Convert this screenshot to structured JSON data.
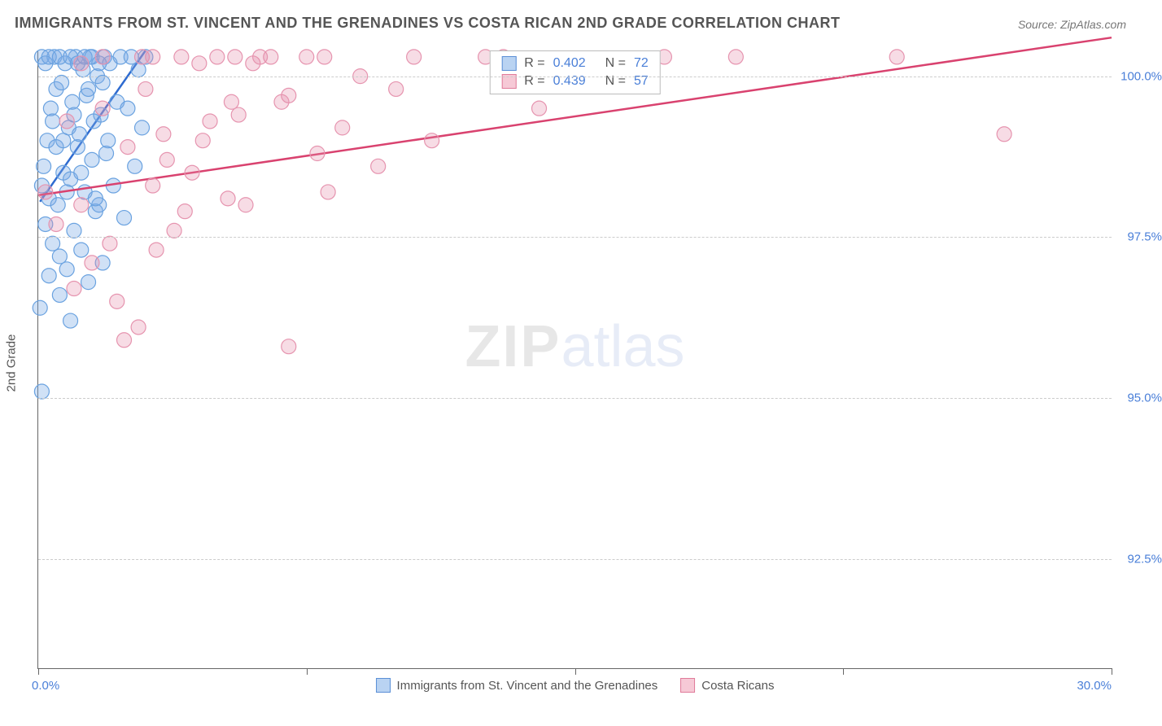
{
  "title": "IMMIGRANTS FROM ST. VINCENT AND THE GRENADINES VS COSTA RICAN 2ND GRADE CORRELATION CHART",
  "source": "Source: ZipAtlas.com",
  "watermark": {
    "part1": "ZIP",
    "part2": "atlas"
  },
  "yaxis": {
    "title": "2nd Grade",
    "min": 90.8,
    "max": 100.4,
    "ticks": [
      92.5,
      95.0,
      97.5,
      100.0
    ],
    "tick_labels": [
      "92.5%",
      "95.0%",
      "97.5%",
      "100.0%"
    ]
  },
  "xaxis": {
    "min": 0.0,
    "max": 30.0,
    "ticks": [
      0,
      7.5,
      15.0,
      22.5,
      30.0
    ],
    "label_left": "0.0%",
    "label_right": "30.0%"
  },
  "grid_color": "#cccccc",
  "series": [
    {
      "key": "svg",
      "name": "Immigrants from St. Vincent and the Grenadines",
      "swatch_fill": "#b9d3f2",
      "swatch_stroke": "#5b8fd6",
      "point_fill": "rgba(120,170,230,0.35)",
      "point_stroke": "#6aa2e0",
      "line_color": "#2e6bd0",
      "r": 0.402,
      "n": 72,
      "marker_r": 9,
      "trend": {
        "x1": 0.05,
        "y1": 98.05,
        "x2": 3.0,
        "y2": 100.4
      },
      "points": [
        [
          0.1,
          98.3
        ],
        [
          0.15,
          98.6
        ],
        [
          0.2,
          97.7
        ],
        [
          0.25,
          99.0
        ],
        [
          0.3,
          98.1
        ],
        [
          0.35,
          99.5
        ],
        [
          0.4,
          97.4
        ],
        [
          0.45,
          100.3
        ],
        [
          0.5,
          99.8
        ],
        [
          0.55,
          98.0
        ],
        [
          0.6,
          97.2
        ],
        [
          0.65,
          99.9
        ],
        [
          0.7,
          98.5
        ],
        [
          0.75,
          100.2
        ],
        [
          0.8,
          97.0
        ],
        [
          0.85,
          99.2
        ],
        [
          0.9,
          98.4
        ],
        [
          0.95,
          99.6
        ],
        [
          1.0,
          97.6
        ],
        [
          1.05,
          100.3
        ],
        [
          1.1,
          98.9
        ],
        [
          1.15,
          99.1
        ],
        [
          1.2,
          97.3
        ],
        [
          1.25,
          100.1
        ],
        [
          1.3,
          98.2
        ],
        [
          1.35,
          99.7
        ],
        [
          1.4,
          96.8
        ],
        [
          1.45,
          100.3
        ],
        [
          1.5,
          98.7
        ],
        [
          1.55,
          99.3
        ],
        [
          1.6,
          97.9
        ],
        [
          1.65,
          100.0
        ],
        [
          1.7,
          98.0
        ],
        [
          1.75,
          99.4
        ],
        [
          1.8,
          97.1
        ],
        [
          1.85,
          100.3
        ],
        [
          1.9,
          98.8
        ],
        [
          1.95,
          99.0
        ],
        [
          2.0,
          100.2
        ],
        [
          2.1,
          98.3
        ],
        [
          2.2,
          99.6
        ],
        [
          2.3,
          100.3
        ],
        [
          2.4,
          97.8
        ],
        [
          2.5,
          99.5
        ],
        [
          2.6,
          100.3
        ],
        [
          2.7,
          98.6
        ],
        [
          2.8,
          100.1
        ],
        [
          2.9,
          99.2
        ],
        [
          3.0,
          100.3
        ],
        [
          0.05,
          96.4
        ],
        [
          0.1,
          95.1
        ],
        [
          0.3,
          96.9
        ],
        [
          0.6,
          96.6
        ],
        [
          0.9,
          96.2
        ],
        [
          0.1,
          100.3
        ],
        [
          0.2,
          100.2
        ],
        [
          0.3,
          100.3
        ],
        [
          0.4,
          99.3
        ],
        [
          0.5,
          98.9
        ],
        [
          0.6,
          100.3
        ],
        [
          0.7,
          99.0
        ],
        [
          0.8,
          98.2
        ],
        [
          0.9,
          100.3
        ],
        [
          1.0,
          99.4
        ],
        [
          1.1,
          100.2
        ],
        [
          1.2,
          98.5
        ],
        [
          1.3,
          100.3
        ],
        [
          1.4,
          99.8
        ],
        [
          1.5,
          100.3
        ],
        [
          1.6,
          98.1
        ],
        [
          1.7,
          100.2
        ],
        [
          1.8,
          99.9
        ]
      ]
    },
    {
      "key": "cr",
      "name": "Costa Ricans",
      "swatch_fill": "#f6c9d6",
      "swatch_stroke": "#e07b9a",
      "point_fill": "rgba(230,140,170,0.30)",
      "point_stroke": "#e694af",
      "line_color": "#d9426f",
      "r": 0.439,
      "n": 57,
      "marker_r": 9,
      "trend": {
        "x1": 0.0,
        "y1": 98.15,
        "x2": 30.0,
        "y2": 100.6
      },
      "points": [
        [
          0.2,
          98.2
        ],
        [
          0.5,
          97.7
        ],
        [
          0.8,
          99.3
        ],
        [
          1.0,
          96.7
        ],
        [
          1.2,
          98.0
        ],
        [
          1.5,
          97.1
        ],
        [
          1.8,
          99.5
        ],
        [
          2.0,
          97.4
        ],
        [
          2.2,
          96.5
        ],
        [
          2.5,
          98.9
        ],
        [
          2.8,
          96.1
        ],
        [
          3.0,
          99.8
        ],
        [
          3.2,
          98.3
        ],
        [
          3.5,
          99.1
        ],
        [
          3.8,
          97.6
        ],
        [
          4.0,
          100.3
        ],
        [
          4.3,
          98.5
        ],
        [
          4.6,
          99.0
        ],
        [
          5.0,
          100.3
        ],
        [
          5.3,
          98.1
        ],
        [
          5.6,
          99.4
        ],
        [
          6.0,
          100.2
        ],
        [
          6.5,
          100.3
        ],
        [
          7.0,
          99.7
        ],
        [
          7.5,
          100.3
        ],
        [
          7.8,
          98.8
        ],
        [
          8.0,
          100.3
        ],
        [
          8.5,
          99.2
        ],
        [
          9.0,
          100.0
        ],
        [
          9.5,
          98.6
        ],
        [
          5.4,
          99.6
        ],
        [
          5.8,
          98.0
        ],
        [
          6.2,
          100.3
        ],
        [
          4.1,
          97.9
        ],
        [
          2.9,
          100.3
        ],
        [
          3.3,
          97.3
        ],
        [
          10.0,
          99.8
        ],
        [
          10.5,
          100.3
        ],
        [
          11.0,
          99.0
        ],
        [
          12.5,
          100.3
        ],
        [
          13.0,
          100.3
        ],
        [
          14.0,
          99.5
        ],
        [
          17.5,
          100.3
        ],
        [
          19.5,
          100.3
        ],
        [
          24.0,
          100.3
        ],
        [
          27.0,
          99.1
        ],
        [
          8.1,
          98.2
        ],
        [
          7.0,
          95.8
        ],
        [
          2.4,
          95.9
        ],
        [
          3.2,
          100.3
        ],
        [
          3.6,
          98.7
        ],
        [
          4.5,
          100.2
        ],
        [
          4.8,
          99.3
        ],
        [
          5.5,
          100.3
        ],
        [
          6.8,
          99.6
        ],
        [
          1.2,
          100.2
        ],
        [
          1.8,
          100.3
        ]
      ]
    }
  ],
  "legend_bottom": [
    {
      "series": 0
    },
    {
      "series": 1
    }
  ]
}
